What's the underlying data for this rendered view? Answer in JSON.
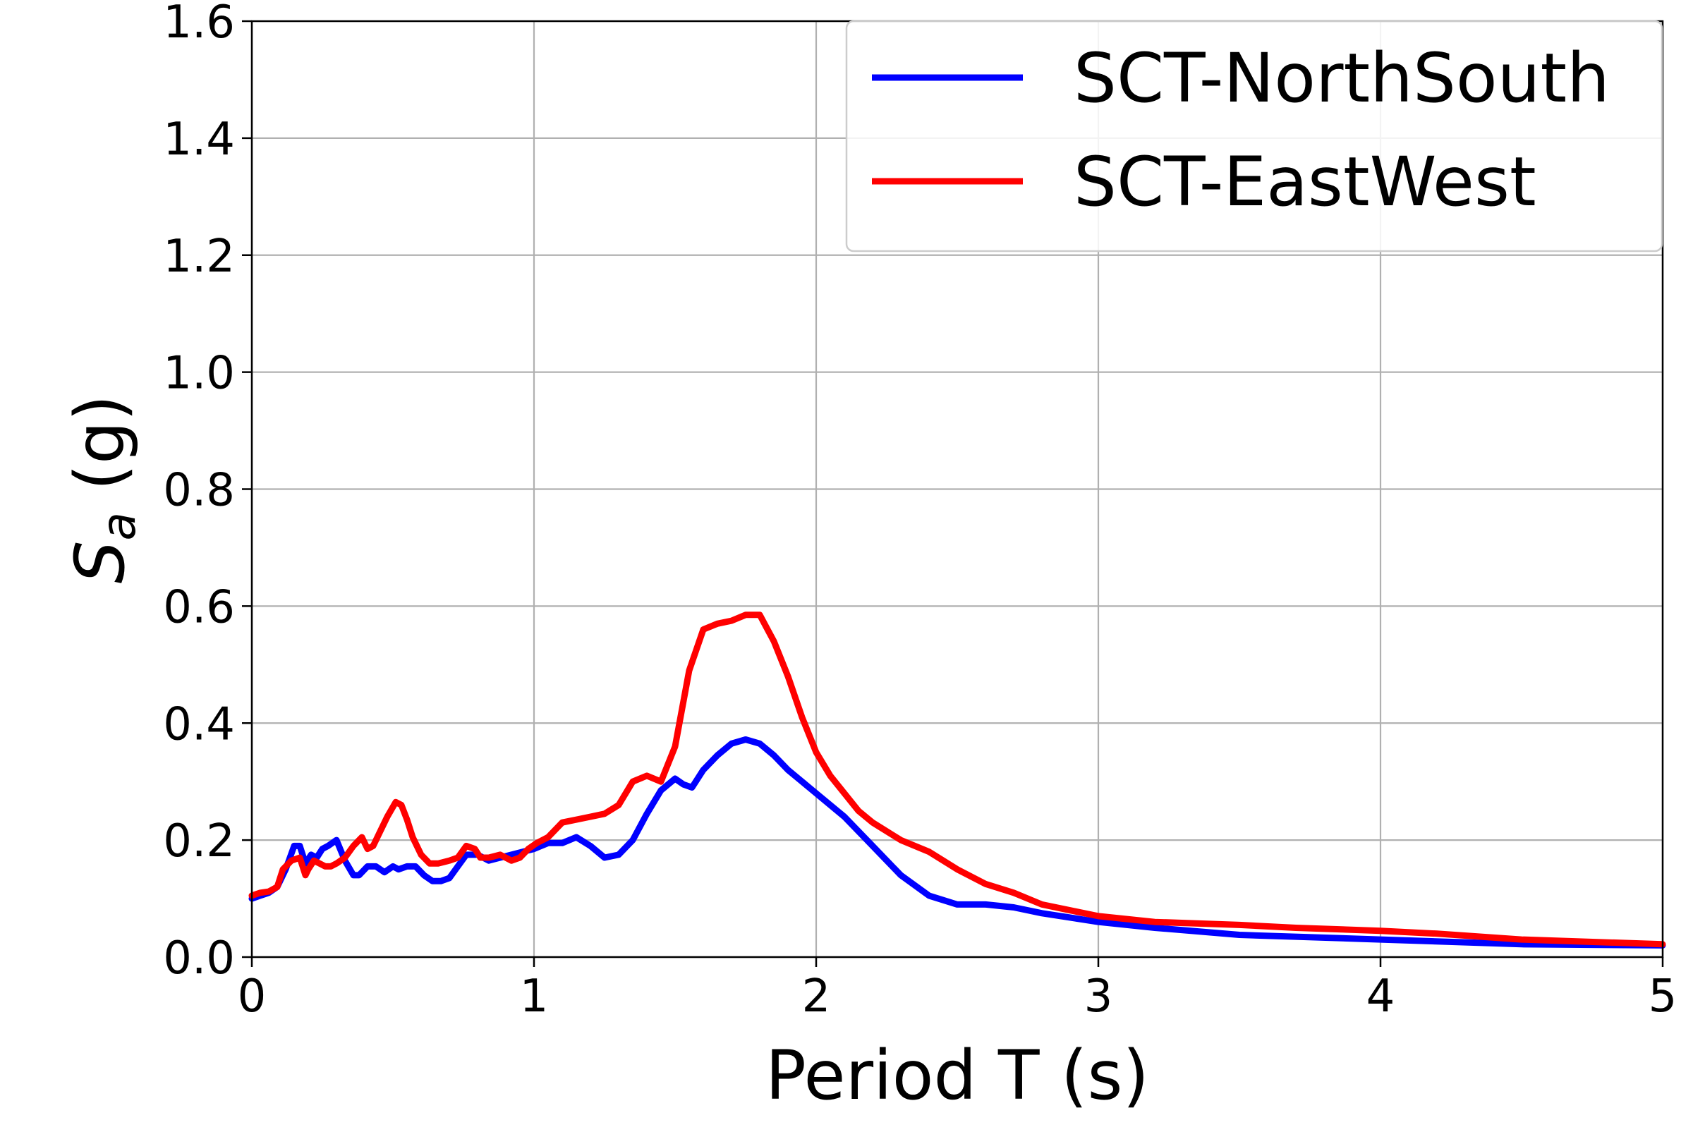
{
  "chart_data": {
    "type": "line",
    "title": "",
    "xlabel": "Period T (s)",
    "ylabel_main": "S",
    "ylabel_sub": "a",
    "ylabel_unit": " (g)",
    "xlim": [
      0,
      5
    ],
    "ylim": [
      0,
      1.6
    ],
    "xticks": [
      0,
      1,
      2,
      3,
      4,
      5
    ],
    "xtick_labels": [
      "0",
      "1",
      "2",
      "3",
      "4",
      "5"
    ],
    "yticks": [
      0.0,
      0.2,
      0.4,
      0.6,
      0.8,
      1.0,
      1.2,
      1.4,
      1.6
    ],
    "ytick_labels": [
      "0.0",
      "0.2",
      "0.4",
      "0.6",
      "0.8",
      "1.0",
      "1.2",
      "1.4",
      "1.6"
    ],
    "grid": true,
    "legend_position": "top-right",
    "series": [
      {
        "name": "SCT-NorthSouth",
        "color": "#0000ff",
        "x": [
          0,
          0.03,
          0.06,
          0.09,
          0.12,
          0.15,
          0.17,
          0.19,
          0.21,
          0.23,
          0.25,
          0.27,
          0.3,
          0.33,
          0.36,
          0.38,
          0.41,
          0.44,
          0.47,
          0.5,
          0.52,
          0.55,
          0.58,
          0.61,
          0.64,
          0.67,
          0.7,
          0.73,
          0.76,
          0.8,
          0.84,
          0.88,
          0.92,
          0.96,
          1.0,
          1.05,
          1.1,
          1.15,
          1.2,
          1.25,
          1.3,
          1.35,
          1.4,
          1.45,
          1.5,
          1.53,
          1.56,
          1.6,
          1.65,
          1.7,
          1.75,
          1.8,
          1.85,
          1.9,
          1.95,
          2.0,
          2.1,
          2.2,
          2.3,
          2.4,
          2.5,
          2.6,
          2.7,
          2.8,
          3.0,
          3.2,
          3.5,
          4.0,
          4.5,
          5.0
        ],
        "y": [
          0.1,
          0.105,
          0.11,
          0.12,
          0.15,
          0.19,
          0.19,
          0.16,
          0.175,
          0.17,
          0.185,
          0.19,
          0.2,
          0.165,
          0.14,
          0.14,
          0.155,
          0.155,
          0.145,
          0.155,
          0.15,
          0.155,
          0.155,
          0.14,
          0.13,
          0.13,
          0.135,
          0.155,
          0.175,
          0.175,
          0.165,
          0.17,
          0.175,
          0.18,
          0.185,
          0.195,
          0.195,
          0.205,
          0.19,
          0.17,
          0.175,
          0.2,
          0.245,
          0.285,
          0.305,
          0.295,
          0.29,
          0.32,
          0.345,
          0.365,
          0.372,
          0.365,
          0.345,
          0.32,
          0.3,
          0.28,
          0.24,
          0.19,
          0.14,
          0.105,
          0.09,
          0.09,
          0.085,
          0.075,
          0.06,
          0.05,
          0.038,
          0.03,
          0.022,
          0.02
        ]
      },
      {
        "name": "SCT-EastWest",
        "color": "#ff0000",
        "x": [
          0,
          0.03,
          0.06,
          0.09,
          0.11,
          0.14,
          0.17,
          0.19,
          0.2,
          0.22,
          0.24,
          0.26,
          0.28,
          0.3,
          0.33,
          0.36,
          0.39,
          0.41,
          0.43,
          0.45,
          0.48,
          0.51,
          0.53,
          0.55,
          0.57,
          0.6,
          0.63,
          0.66,
          0.7,
          0.73,
          0.76,
          0.79,
          0.81,
          0.84,
          0.88,
          0.92,
          0.95,
          0.98,
          1.01,
          1.05,
          1.1,
          1.15,
          1.2,
          1.25,
          1.3,
          1.35,
          1.4,
          1.45,
          1.5,
          1.55,
          1.6,
          1.65,
          1.7,
          1.75,
          1.8,
          1.85,
          1.9,
          1.95,
          2.0,
          2.05,
          2.1,
          2.15,
          2.2,
          2.3,
          2.4,
          2.5,
          2.6,
          2.7,
          2.8,
          2.9,
          3.0,
          3.2,
          3.5,
          3.7,
          4.0,
          4.2,
          4.5,
          5.0
        ],
        "y": [
          0.105,
          0.11,
          0.112,
          0.12,
          0.15,
          0.165,
          0.17,
          0.14,
          0.15,
          0.165,
          0.16,
          0.155,
          0.155,
          0.16,
          0.17,
          0.19,
          0.205,
          0.185,
          0.19,
          0.21,
          0.24,
          0.265,
          0.26,
          0.235,
          0.205,
          0.175,
          0.16,
          0.16,
          0.165,
          0.17,
          0.19,
          0.185,
          0.17,
          0.17,
          0.175,
          0.165,
          0.17,
          0.185,
          0.195,
          0.205,
          0.23,
          0.235,
          0.24,
          0.245,
          0.26,
          0.3,
          0.31,
          0.3,
          0.36,
          0.49,
          0.56,
          0.57,
          0.575,
          0.585,
          0.585,
          0.54,
          0.48,
          0.41,
          0.35,
          0.31,
          0.28,
          0.25,
          0.23,
          0.2,
          0.18,
          0.15,
          0.125,
          0.11,
          0.09,
          0.08,
          0.07,
          0.06,
          0.055,
          0.05,
          0.045,
          0.04,
          0.03,
          0.022
        ]
      }
    ]
  }
}
